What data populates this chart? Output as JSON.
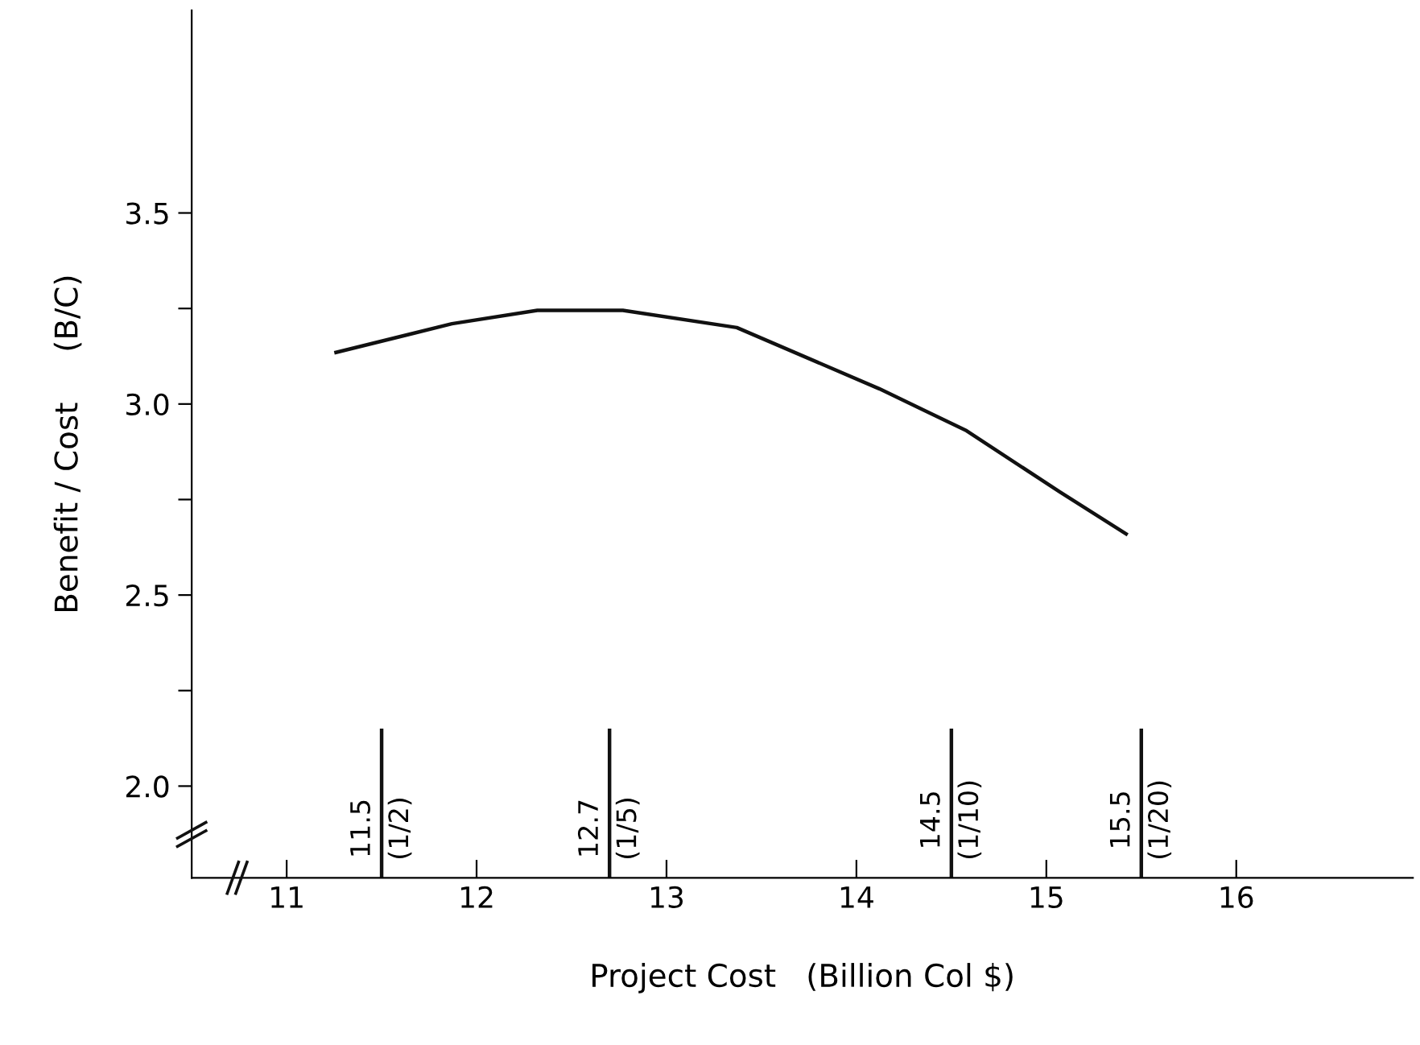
{
  "chart_data": {
    "type": "line",
    "xlabel": "Project Cost   (Billion Col $)",
    "ylabel": "Benefit / Cost     (B/C)",
    "x": [
      11.26,
      11.87,
      12.32,
      12.77,
      13.37,
      14.12,
      14.58,
      15.07,
      15.42
    ],
    "series": [
      {
        "color": "#111111",
        "values": [
          3.135,
          3.21,
          3.245,
          3.245,
          3.2,
          3.04,
          2.93,
          2.77,
          2.66
        ]
      }
    ],
    "xlim": [
      10.5,
      16.93
    ],
    "ylim": [
      1.76,
      4.03
    ],
    "xticks": [
      11,
      12,
      13,
      14,
      15,
      16
    ],
    "yticks": [
      {
        "value": 2.0,
        "label": "2.0"
      },
      {
        "value": 2.25,
        "label": null
      },
      {
        "value": 2.5,
        "label": "2.5"
      },
      {
        "value": 2.75,
        "label": null
      },
      {
        "value": 3.0,
        "label": "3.0"
      },
      {
        "value": 3.25,
        "label": null
      },
      {
        "value": 3.5,
        "label": "3.5"
      }
    ],
    "ref_lines": [
      {
        "axis": "x",
        "value": 11.5,
        "label": "11.5\n(1/2)"
      },
      {
        "axis": "x",
        "value": 12.7,
        "label": "12.7\n(1/5)"
      },
      {
        "axis": "x",
        "value": 14.5,
        "label": "14.5\n(1/10)"
      },
      {
        "axis": "x",
        "value": 15.5,
        "label": "15.5\n(1/20)"
      }
    ],
    "grid": false,
    "marker": "none",
    "line_style": "solid"
  }
}
